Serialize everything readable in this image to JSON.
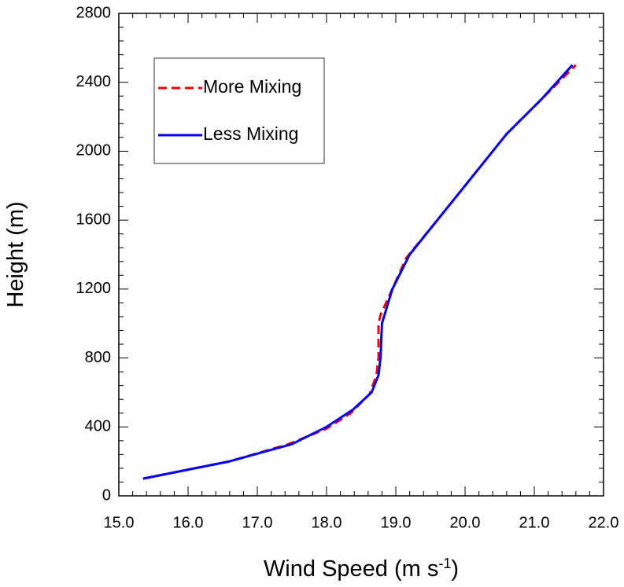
{
  "chart_data": {
    "type": "line",
    "title": "",
    "xlabel": "Wind Speed (m s",
    "xlabel_superscript": "-1",
    "xlabel_suffix": ")",
    "ylabel": "Height (m)",
    "xlim": [
      15.0,
      22.0
    ],
    "ylim": [
      0,
      2800
    ],
    "xticks": [
      "15.0",
      "16.0",
      "17.0",
      "18.0",
      "19.0",
      "20.0",
      "21.0",
      "22.0"
    ],
    "yticks": [
      "0",
      "400",
      "800",
      "1200",
      "1600",
      "2000",
      "2400",
      "2800"
    ],
    "grid": false,
    "legend_position": "top-left",
    "series": [
      {
        "name": "More Mixing",
        "color": "#ff0000",
        "dash": "dashed",
        "x": [
          15.35,
          16.6,
          17.45,
          18.0,
          18.35,
          18.62,
          18.72,
          18.75,
          18.75,
          18.78,
          18.95,
          19.15,
          19.6,
          20.0,
          20.6,
          21.1,
          21.6
        ],
        "y": [
          100,
          200,
          300,
          390,
          480,
          590,
          700,
          800,
          1000,
          1050,
          1200,
          1380,
          1600,
          1800,
          2100,
          2300,
          2500
        ]
      },
      {
        "name": "Less Mixing",
        "color": "#0000ff",
        "dash": "solid",
        "x": [
          15.35,
          16.6,
          17.5,
          18.0,
          18.38,
          18.65,
          18.75,
          18.78,
          18.8,
          18.95,
          19.2,
          19.6,
          20.0,
          20.6,
          21.1,
          21.55
        ],
        "y": [
          100,
          200,
          300,
          400,
          500,
          600,
          700,
          800,
          1000,
          1200,
          1400,
          1600,
          1800,
          2100,
          2300,
          2500
        ]
      }
    ]
  }
}
